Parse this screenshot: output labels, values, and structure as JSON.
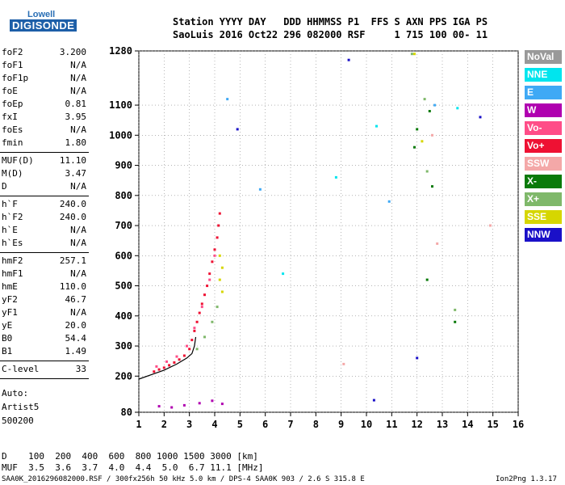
{
  "logo": {
    "line1": "Lowell",
    "line2": "DIGISONDE"
  },
  "header": {
    "row1": "Station YYYY DAY   DDD HHMMSS P1  FFS S AXN PPS IGA PS",
    "row2": "SaoLuis 2016 Oct22 296 082000 RSF     1 715 100 00- 11"
  },
  "params": [
    {
      "name": "foF2",
      "value": "3.200"
    },
    {
      "name": "foF1",
      "value": "N/A"
    },
    {
      "name": "foF1p",
      "value": "N/A"
    },
    {
      "name": "foE",
      "value": "N/A"
    },
    {
      "name": "foEp",
      "value": "0.81"
    },
    {
      "name": "fxI",
      "value": "3.95"
    },
    {
      "name": "foEs",
      "value": "N/A"
    },
    {
      "name": "fmin",
      "value": "1.80"
    },
    {
      "name": "MUF(D)",
      "value": "11.10"
    },
    {
      "name": "M(D)",
      "value": "3.47"
    },
    {
      "name": "D",
      "value": "N/A"
    },
    {
      "name": "h`F",
      "value": "240.0"
    },
    {
      "name": "h`F2",
      "value": "240.0"
    },
    {
      "name": "h`E",
      "value": "N/A"
    },
    {
      "name": "h`Es",
      "value": "N/A"
    },
    {
      "name": "hmF2",
      "value": "257.1"
    },
    {
      "name": "hmF1",
      "value": "N/A"
    },
    {
      "name": "hmE",
      "value": "110.0"
    },
    {
      "name": "yF2",
      "value": "46.7"
    },
    {
      "name": "yF1",
      "value": "N/A"
    },
    {
      "name": "yE",
      "value": "20.0"
    },
    {
      "name": "B0",
      "value": "54.4"
    },
    {
      "name": "B1",
      "value": "1.49"
    },
    {
      "name": "C-level",
      "value": "33"
    }
  ],
  "scaling": {
    "line1": "Auto:",
    "line2": "Artist5",
    "line3": "500200"
  },
  "legend": [
    {
      "label": "NoVal",
      "color": "#999999"
    },
    {
      "label": "NNE",
      "color": "#00e5ee"
    },
    {
      "label": "E",
      "color": "#3fa9f5"
    },
    {
      "label": "W",
      "color": "#b000b0"
    },
    {
      "label": "Vo-",
      "color": "#ff4d88"
    },
    {
      "label": "Vo+",
      "color": "#ee1133"
    },
    {
      "label": "SSW",
      "color": "#f4a8a8"
    },
    {
      "label": "X-",
      "color": "#0a7a0a"
    },
    {
      "label": "X+",
      "color": "#7fb86a"
    },
    {
      "label": "SSE",
      "color": "#d6d600"
    },
    {
      "label": "NNW",
      "color": "#1a10c8"
    }
  ],
  "muf_table": {
    "d_row": "D    100  200  400  600  800 1000 1500 3000 [km]",
    "muf_row": "MUF  3.5  3.6  3.7  4.0  4.4  5.0  6.7 11.1 [MHz]"
  },
  "footer": {
    "left": "SAA0K_2016296082000.RSF / 300fx256h 50 kHz 5.0 km / DPS-4 SAA0K 903 / 2.6 S 315.8 E",
    "right": "Ion2Png 1.3.17"
  },
  "chart_data": {
    "type": "scatter",
    "title": "",
    "xlabel": "",
    "ylabel": "",
    "x_unit": "MHz",
    "y_unit": "km",
    "xlim": [
      1,
      16
    ],
    "ylim": [
      80,
      1280
    ],
    "x_ticks": [
      1,
      2,
      3,
      4,
      5,
      6,
      7,
      8,
      9,
      10,
      11,
      12,
      13,
      14,
      15,
      16
    ],
    "y_ticks": [
      80,
      200,
      300,
      400,
      500,
      600,
      700,
      800,
      900,
      1000,
      1100,
      1280
    ],
    "grid": true,
    "legend_placement": "right",
    "series": [
      {
        "name": "Vo+",
        "color": "#ee1133",
        "points": [
          [
            1.6,
            215
          ],
          [
            1.8,
            222
          ],
          [
            2.0,
            228
          ],
          [
            2.2,
            236
          ],
          [
            2.4,
            245
          ],
          [
            2.6,
            255
          ],
          [
            2.8,
            268
          ],
          [
            3.0,
            290
          ],
          [
            3.1,
            320
          ],
          [
            3.2,
            350
          ],
          [
            3.3,
            380
          ],
          [
            3.4,
            410
          ],
          [
            3.5,
            440
          ],
          [
            3.6,
            470
          ],
          [
            3.7,
            500
          ],
          [
            3.8,
            540
          ],
          [
            3.9,
            580
          ],
          [
            4.0,
            620
          ],
          [
            4.1,
            660
          ],
          [
            4.15,
            700
          ],
          [
            4.2,
            740
          ]
        ]
      },
      {
        "name": "Vo-",
        "color": "#ff4d88",
        "points": [
          [
            1.7,
            232
          ],
          [
            2.1,
            248
          ],
          [
            2.5,
            265
          ],
          [
            2.9,
            300
          ],
          [
            3.2,
            360
          ],
          [
            3.5,
            430
          ],
          [
            3.8,
            520
          ],
          [
            4.0,
            600
          ]
        ]
      },
      {
        "name": "X+",
        "color": "#7fb86a",
        "points": [
          [
            3.3,
            290
          ],
          [
            3.6,
            330
          ],
          [
            3.9,
            380
          ],
          [
            4.1,
            430
          ],
          [
            11.8,
            1270
          ],
          [
            12.3,
            1120
          ],
          [
            12.4,
            880
          ],
          [
            13.5,
            420
          ]
        ]
      },
      {
        "name": "X-",
        "color": "#0a7a0a",
        "points": [
          [
            12.0,
            1020
          ],
          [
            12.5,
            1080
          ],
          [
            12.6,
            830
          ],
          [
            13.5,
            380
          ],
          [
            12.4,
            520
          ],
          [
            11.9,
            960
          ]
        ]
      },
      {
        "name": "SSE",
        "color": "#d6d600",
        "points": [
          [
            4.2,
            520
          ],
          [
            4.3,
            560
          ],
          [
            4.3,
            480
          ],
          [
            4.2,
            600
          ],
          [
            11.9,
            1270
          ],
          [
            12.2,
            980
          ]
        ]
      },
      {
        "name": "W",
        "color": "#b000b0",
        "points": [
          [
            1.8,
            100
          ],
          [
            2.3,
            96
          ],
          [
            2.8,
            103
          ],
          [
            3.4,
            110
          ],
          [
            3.9,
            118
          ],
          [
            4.3,
            108
          ]
        ]
      },
      {
        "name": "NNW",
        "color": "#1a10c8",
        "points": [
          [
            9.3,
            1250
          ],
          [
            10.3,
            120
          ],
          [
            12.0,
            260
          ],
          [
            14.5,
            1060
          ],
          [
            4.9,
            1020
          ]
        ]
      },
      {
        "name": "NNE",
        "color": "#00e5ee",
        "points": [
          [
            6.7,
            540
          ],
          [
            10.4,
            1030
          ],
          [
            13.6,
            1090
          ],
          [
            8.8,
            860
          ]
        ]
      },
      {
        "name": "E",
        "color": "#3fa9f5",
        "points": [
          [
            5.8,
            820
          ],
          [
            4.5,
            1120
          ],
          [
            10.9,
            780
          ],
          [
            12.7,
            1100
          ]
        ]
      },
      {
        "name": "SSW",
        "color": "#f4a8a8",
        "points": [
          [
            9.1,
            240
          ],
          [
            12.8,
            640
          ],
          [
            14.9,
            700
          ],
          [
            12.6,
            1000
          ]
        ]
      }
    ],
    "trace_curve": [
      [
        1.0,
        190
      ],
      [
        1.5,
        205
      ],
      [
        2.0,
        220
      ],
      [
        2.5,
        240
      ],
      [
        2.9,
        260
      ],
      [
        3.1,
        275
      ],
      [
        3.2,
        300
      ],
      [
        3.25,
        330
      ]
    ]
  }
}
